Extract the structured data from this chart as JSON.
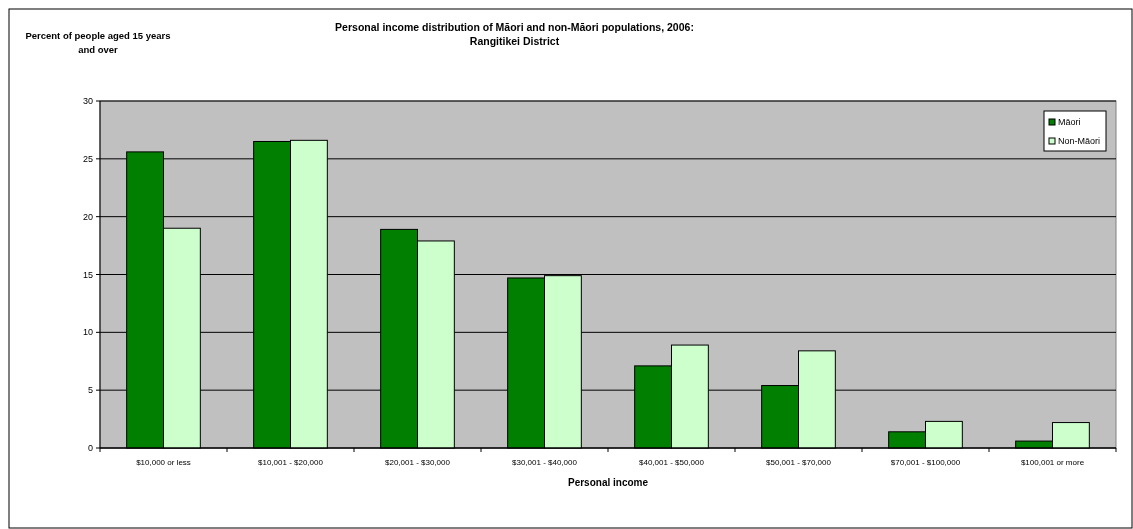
{
  "chart_data": {
    "type": "bar",
    "title": "Personal income distribution of Māori and non-Māori populations, 2006:\nRangitikei District",
    "ylabel": "Percent of people aged 15 years\nand over",
    "xlabel": "Personal income",
    "categories": [
      "$10,000 or less",
      "$10,001 - $20,000",
      "$20,001 - $30,000",
      "$30,001 - $40,000",
      "$40,001 - $50,000",
      "$50,001 - $70,000",
      "$70,001 - $100,000",
      "$100,001 or more"
    ],
    "series": [
      {
        "name": "Māori",
        "color": "#007f00",
        "values": [
          25.6,
          26.5,
          18.9,
          14.7,
          7.1,
          5.4,
          1.4,
          0.6
        ]
      },
      {
        "name": "Non-Māori",
        "color": "#ccffcc",
        "values": [
          19.0,
          26.6,
          17.9,
          14.9,
          8.9,
          8.4,
          2.3,
          2.2
        ]
      }
    ],
    "ylim": [
      0,
      30
    ],
    "yticks": [
      0,
      5,
      10,
      15,
      20,
      25,
      30
    ],
    "grid": "y",
    "legend": "top right"
  }
}
